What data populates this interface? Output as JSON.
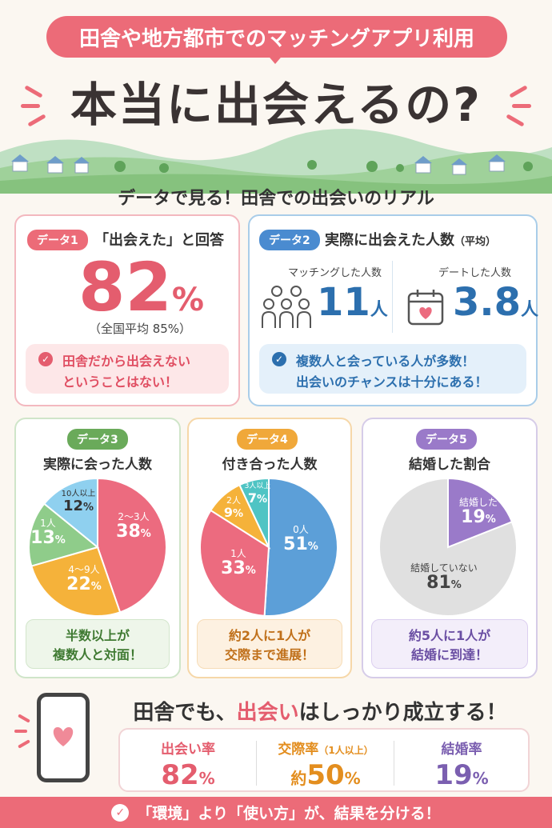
{
  "header": {
    "kicker": "田舎や地方都市でのマッチングアプリ利用",
    "title": "本当に出会えるの?"
  },
  "section_heading": "データで見る！田舎での出会いのリアル",
  "data1": {
    "badge": "データ1",
    "title": "「出会えた」と回答",
    "value": "82",
    "unit": "%",
    "note": "（全国平均 85%）",
    "callout": [
      "田舎だから出会えない",
      "ということはない！"
    ],
    "color": "#e45d6e"
  },
  "data2": {
    "badge": "データ2",
    "title": "実際に出会えた人数",
    "title_note": "（平均）",
    "matched_label": "マッチングした人数",
    "matched_value": "11",
    "dated_label": "デートした人数",
    "dated_value": "3.8",
    "unit": "人",
    "callout": [
      "複数人と会っている人が多数！",
      "出会いのチャンスは十分にある！"
    ],
    "color": "#2c6fae"
  },
  "data3": {
    "badge": "データ3",
    "title": "実際に会った人数",
    "footer": [
      "半数以上が",
      "複数人と対面！"
    ],
    "color": "#5a9e4c"
  },
  "data4": {
    "badge": "データ4",
    "title": "付き合った人数",
    "footer": [
      "約2人に1人が",
      "交際まで進展！"
    ],
    "color": "#e38e1f"
  },
  "data5": {
    "badge": "データ5",
    "title": "結婚した割合",
    "footer": [
      "約5人に1人が",
      "結婚に到達！"
    ],
    "color": "#7b5fb0"
  },
  "chart_data": [
    {
      "type": "pie",
      "title": "実際に会った人数",
      "categories": [
        "2〜3人",
        "4〜9人",
        "1人",
        "10人以上"
      ],
      "values": [
        38,
        22,
        13,
        12
      ],
      "colors": [
        "#ec6b7f",
        "#f5b23a",
        "#8fcc8a",
        "#8fd0ef"
      ]
    },
    {
      "type": "pie",
      "title": "付き合った人数",
      "categories": [
        "0人",
        "1人",
        "2人",
        "3人以上"
      ],
      "values": [
        51,
        33,
        9,
        7
      ],
      "colors": [
        "#5c9fd8",
        "#ec6b7f",
        "#f5b23a",
        "#4fc4c4"
      ]
    },
    {
      "type": "pie",
      "title": "結婚した割合",
      "categories": [
        "結婚した",
        "結婚していない"
      ],
      "values": [
        19,
        81
      ],
      "colors": [
        "#9a7ac9",
        "#e0e0e0"
      ]
    }
  ],
  "bottom": {
    "headline_pre": "田舎でも、",
    "headline_hl": "出会い",
    "headline_mid": "は",
    "headline_post": "しっかり成立する！",
    "rates": [
      {
        "label": "出会い率",
        "value": "82",
        "prefix": "",
        "unit": "%",
        "label_note": ""
      },
      {
        "label": "交際率",
        "value": "50",
        "prefix": "約",
        "unit": "%",
        "label_note": "（1人以上）"
      },
      {
        "label": "結婚率",
        "value": "19",
        "prefix": "",
        "unit": "%",
        "label_note": ""
      }
    ],
    "banner": "「環境」より「使い方」が、結果を分ける！"
  }
}
